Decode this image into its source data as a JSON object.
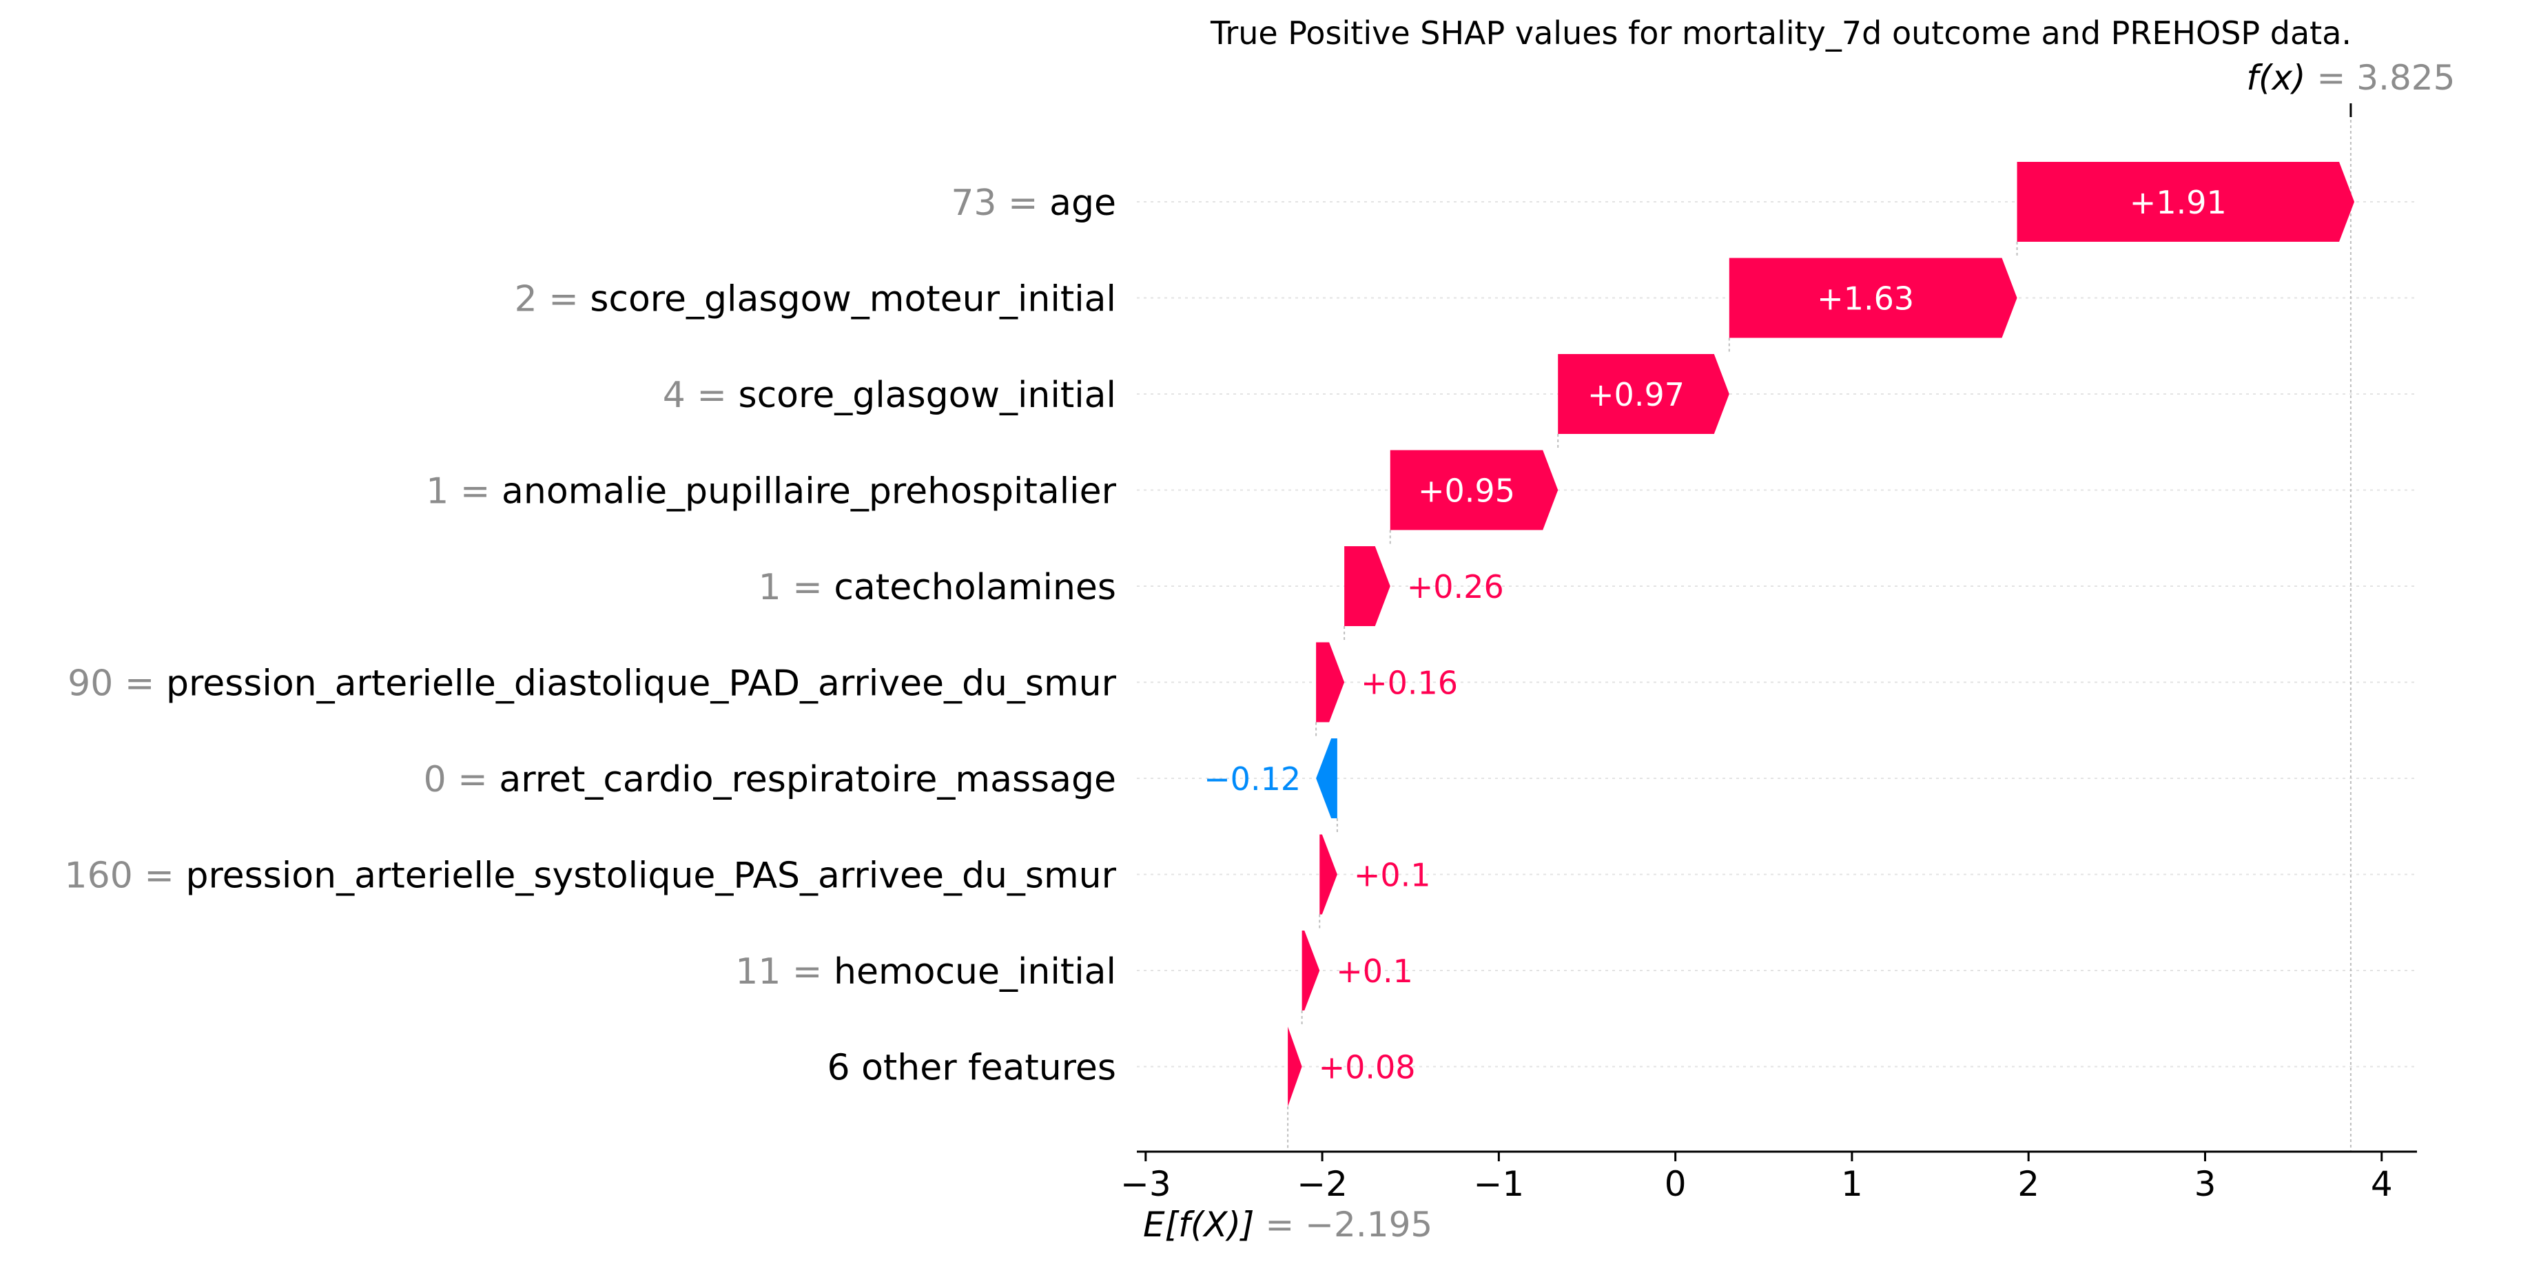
{
  "chart_data": {
    "type": "waterfall",
    "title": "True Positive SHAP values for mortality_7d outcome and PREHOSP data.",
    "base_value": -2.195,
    "base_label": "E[f(X)]",
    "base_value_text": "= −2.195",
    "output_value": 3.825,
    "output_label": "f(x)",
    "output_value_text": "= 3.825",
    "x_range": [
      -3.05,
      4.2
    ],
    "x_ticks": [
      -3,
      -2,
      -1,
      0,
      1,
      2,
      3,
      4
    ],
    "x_tick_labels": [
      "−3",
      "−2",
      "−1",
      "0",
      "1",
      "2",
      "3",
      "4"
    ],
    "features": [
      {
        "value": "73",
        "name": "age",
        "shap": 1.91,
        "label": "+1.91"
      },
      {
        "value": "2",
        "name": "score_glasgow_moteur_initial",
        "shap": 1.63,
        "label": "+1.63"
      },
      {
        "value": "4",
        "name": "score_glasgow_initial",
        "shap": 0.97,
        "label": "+0.97"
      },
      {
        "value": "1",
        "name": "anomalie_pupillaire_prehospitalier",
        "shap": 0.95,
        "label": "+0.95"
      },
      {
        "value": "1",
        "name": "catecholamines",
        "shap": 0.26,
        "label": "+0.26"
      },
      {
        "value": "90",
        "name": "pression_arterielle_diastolique_PAD_arrivee_du_smur",
        "shap": 0.16,
        "label": "+0.16"
      },
      {
        "value": "0",
        "name": "arret_cardio_respiratoire_massage",
        "shap": -0.12,
        "label": "−0.12"
      },
      {
        "value": "160",
        "name": "pression_arterielle_systolique_PAS_arrivee_du_smur",
        "shap": 0.1,
        "label": "+0.1"
      },
      {
        "value": "11",
        "name": "hemocue_initial",
        "shap": 0.1,
        "label": "+0.1"
      },
      {
        "value": "",
        "name": "6 other features",
        "shap": 0.08,
        "label": "+0.08"
      }
    ],
    "colors": {
      "positive": "#ff0051",
      "negative": "#008bfb",
      "muted": "#8c8c8c"
    }
  }
}
